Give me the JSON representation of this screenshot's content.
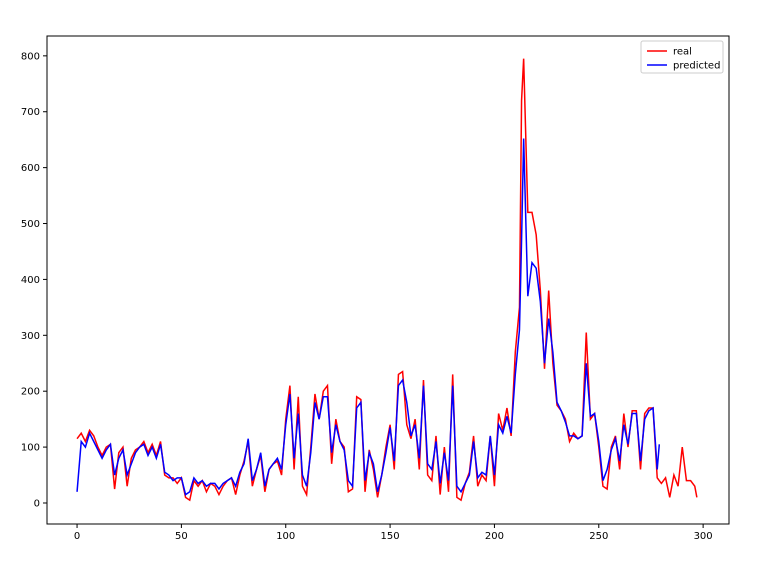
{
  "chart_data": {
    "type": "line",
    "xlim": [
      -14.4,
      312.4
    ],
    "ylim": [
      -37.6,
      835.5
    ],
    "xticks": [
      0,
      50,
      100,
      150,
      200,
      250,
      300
    ],
    "yticks": [
      0,
      100,
      200,
      300,
      400,
      500,
      600,
      700,
      800
    ],
    "legend": "upper right",
    "series": [
      {
        "name": "real",
        "color": "#ff0000",
        "x": [
          0,
          2,
          4,
          6,
          8,
          10,
          12,
          14,
          16,
          18,
          20,
          22,
          24,
          26,
          28,
          30,
          32,
          34,
          36,
          38,
          40,
          42,
          44,
          46,
          48,
          50,
          52,
          54,
          56,
          58,
          60,
          62,
          64,
          66,
          68,
          70,
          72,
          74,
          76,
          78,
          80,
          82,
          84,
          86,
          88,
          90,
          92,
          94,
          96,
          98,
          100,
          102,
          104,
          106,
          108,
          110,
          112,
          114,
          116,
          118,
          120,
          122,
          124,
          126,
          128,
          130,
          132,
          134,
          136,
          138,
          140,
          142,
          144,
          146,
          148,
          150,
          152,
          154,
          156,
          158,
          160,
          162,
          164,
          166,
          168,
          170,
          172,
          174,
          176,
          178,
          180,
          182,
          184,
          186,
          188,
          190,
          192,
          194,
          196,
          198,
          200,
          202,
          204,
          206,
          208,
          210,
          212,
          213,
          214,
          216,
          218,
          220,
          222,
          224,
          226,
          228,
          230,
          232,
          234,
          236,
          238,
          240,
          242,
          244,
          246,
          248,
          250,
          252,
          254,
          256,
          258,
          260,
          262,
          264,
          266,
          268,
          270,
          272,
          274,
          276,
          278,
          280,
          282,
          284,
          286,
          288,
          290,
          292,
          294,
          296,
          297
        ],
        "values": [
          115,
          125,
          110,
          130,
          120,
          100,
          85,
          100,
          105,
          25,
          90,
          100,
          30,
          80,
          95,
          100,
          110,
          90,
          105,
          85,
          110,
          50,
          45,
          45,
          35,
          45,
          10,
          5,
          40,
          30,
          40,
          20,
          35,
          30,
          15,
          30,
          40,
          45,
          15,
          50,
          75,
          110,
          30,
          60,
          85,
          20,
          60,
          70,
          75,
          50,
          150,
          210,
          60,
          190,
          30,
          15,
          100,
          195,
          150,
          200,
          210,
          70,
          150,
          110,
          100,
          20,
          25,
          190,
          185,
          20,
          95,
          60,
          10,
          50,
          100,
          140,
          60,
          230,
          235,
          140,
          115,
          150,
          60,
          220,
          50,
          40,
          120,
          15,
          100,
          20,
          230,
          10,
          5,
          35,
          55,
          120,
          30,
          50,
          40,
          120,
          30,
          160,
          130,
          170,
          120,
          270,
          350,
          720,
          795,
          520,
          520,
          480,
          380,
          240,
          380,
          250,
          175,
          165,
          150,
          110,
          125,
          115,
          120,
          305,
          150,
          160,
          100,
          30,
          25,
          100,
          120,
          60,
          160,
          100,
          165,
          165,
          60,
          160,
          170,
          170,
          45,
          35,
          45,
          10,
          50,
          30,
          100,
          40,
          40,
          30,
          10
        ]
      },
      {
        "name": "predicted",
        "color": "#0000ff",
        "x": [
          0,
          2,
          4,
          6,
          8,
          10,
          12,
          14,
          16,
          18,
          20,
          22,
          24,
          26,
          28,
          30,
          32,
          34,
          36,
          38,
          40,
          42,
          44,
          46,
          48,
          50,
          52,
          54,
          56,
          58,
          60,
          62,
          64,
          66,
          68,
          70,
          72,
          74,
          76,
          78,
          80,
          82,
          84,
          86,
          88,
          90,
          92,
          94,
          96,
          98,
          100,
          102,
          104,
          106,
          108,
          110,
          112,
          114,
          116,
          118,
          120,
          122,
          124,
          126,
          128,
          130,
          132,
          134,
          136,
          138,
          140,
          142,
          144,
          146,
          148,
          150,
          152,
          154,
          156,
          158,
          160,
          162,
          164,
          166,
          168,
          170,
          172,
          174,
          176,
          178,
          180,
          182,
          184,
          186,
          188,
          190,
          192,
          194,
          196,
          198,
          200,
          202,
          204,
          206,
          208,
          210,
          212,
          213,
          214,
          216,
          218,
          220,
          222,
          224,
          226,
          228,
          230,
          232,
          234,
          236,
          238,
          240,
          242,
          244,
          246,
          248,
          250,
          252,
          254,
          256,
          258,
          260,
          262,
          264,
          266,
          268,
          270,
          272,
          274,
          276,
          278,
          279
        ],
        "values": [
          20,
          110,
          100,
          125,
          110,
          95,
          80,
          95,
          105,
          50,
          80,
          95,
          50,
          70,
          90,
          100,
          105,
          85,
          100,
          80,
          105,
          55,
          50,
          40,
          45,
          45,
          15,
          20,
          45,
          35,
          40,
          30,
          35,
          35,
          25,
          35,
          40,
          45,
          30,
          55,
          70,
          115,
          40,
          60,
          90,
          30,
          60,
          70,
          80,
          60,
          140,
          195,
          80,
          160,
          50,
          30,
          90,
          180,
          150,
          190,
          190,
          90,
          140,
          110,
          95,
          40,
          30,
          170,
          180,
          40,
          90,
          70,
          20,
          50,
          90,
          135,
          75,
          210,
          220,
          180,
          120,
          140,
          80,
          210,
          70,
          60,
          110,
          35,
          90,
          40,
          210,
          30,
          20,
          35,
          50,
          110,
          45,
          55,
          50,
          120,
          50,
          140,
          125,
          155,
          125,
          230,
          310,
          470,
          652,
          370,
          430,
          420,
          360,
          250,
          330,
          270,
          180,
          165,
          145,
          120,
          120,
          115,
          120,
          250,
          155,
          160,
          110,
          40,
          60,
          95,
          115,
          75,
          140,
          105,
          160,
          160,
          75,
          150,
          165,
          170,
          60,
          105
        ]
      }
    ]
  }
}
